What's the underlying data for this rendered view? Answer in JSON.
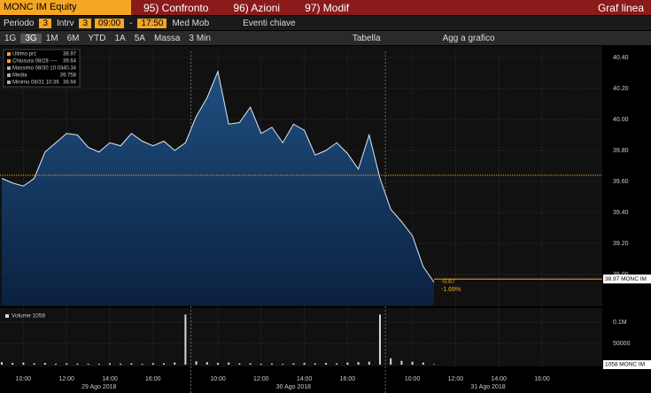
{
  "toolbar": {
    "ticker": "MONC IM Equity",
    "menu": [
      "95) Confronto",
      "96) Azioni",
      "97) Modif"
    ],
    "view": "Graf linea",
    "period_label": "Periodo",
    "period": "3",
    "interval_label": "Intrv",
    "interval": "3",
    "start": "09:00",
    "dash": "-",
    "end": "17:50",
    "moving_avg": "Med Mob",
    "events": "Eventi chiave",
    "ranges": [
      "1G",
      "3G",
      "1M",
      "6M",
      "YTD",
      "1A",
      "5A"
    ],
    "mass": "Massa",
    "step": "3 Min",
    "table": "Tabella",
    "add": "Agg a grafico"
  },
  "chart_data": [
    {
      "type": "area",
      "color": "#dfe8f2",
      "legend": [
        {
          "label": "Ultimo prz",
          "value": 38.97
        },
        {
          "label": "Chiusura 08/28 ----",
          "value": 39.64
        },
        {
          "label": "Massimo 08/30 10:03",
          "value": 40.34
        },
        {
          "label": "Media",
          "value": 39.758
        },
        {
          "label": "Minimo 08/31 10:36",
          "value": 38.94
        }
      ],
      "categories": [
        null,
        null,
        "10:00",
        null,
        null,
        null,
        "12:00",
        null,
        null,
        null,
        "14:00",
        null,
        null,
        null,
        "16:00",
        null,
        null,
        null,
        null,
        null,
        "10:00",
        null,
        null,
        null,
        "12:00",
        null,
        null,
        null,
        "14:00",
        null,
        null,
        null,
        "16:00",
        null,
        null,
        null,
        null,
        null,
        "10:00",
        null,
        null,
        null,
        "12:00",
        null,
        null,
        null,
        "14:00",
        null,
        null,
        null,
        "16:00",
        null,
        null,
        null
      ],
      "dates": [
        "29 Ago 2018",
        "30 Ago 2018",
        "31 Ago 2018"
      ],
      "values": [
        39.62,
        39.59,
        39.57,
        39.62,
        39.79,
        39.85,
        39.91,
        39.9,
        39.82,
        39.79,
        39.85,
        39.83,
        39.91,
        39.86,
        39.83,
        39.86,
        39.8,
        39.85,
        40.02,
        40.14,
        40.31,
        39.97,
        39.98,
        40.08,
        39.91,
        39.95,
        39.85,
        39.97,
        39.93,
        39.77,
        39.8,
        39.85,
        39.78,
        39.68,
        39.9,
        39.62,
        39.42,
        39.34,
        39.25,
        39.05,
        38.95,
        null,
        null,
        null,
        null,
        null,
        null,
        null,
        null,
        null,
        null,
        null,
        null,
        null
      ],
      "ylim": [
        38.8,
        40.44
      ],
      "yticks": [
        {
          "value": 39,
          "label": "39.00"
        },
        {
          "value": 39.2,
          "label": "39.20"
        },
        {
          "value": 39.4,
          "label": "39.40"
        },
        {
          "value": 39.6,
          "label": "39.60"
        },
        {
          "value": 39.8,
          "label": "39.80"
        },
        {
          "value": 40,
          "label": "40.00"
        },
        {
          "value": 40.2,
          "label": "40.20"
        },
        {
          "value": 40.4,
          "label": "40.40"
        }
      ],
      "last_label": "38.97 MONC IM",
      "annotations": [
        "-0.67",
        "-1.69%"
      ]
    },
    {
      "type": "bar",
      "color": "#d8d8d8",
      "legend": "Volume 1058",
      "values": [
        6000,
        4000,
        5000,
        3000,
        4000,
        2000,
        3000,
        2500,
        2000,
        2000,
        3000,
        2500,
        3000,
        2000,
        3500,
        3000,
        5000,
        118000,
        8000,
        6000,
        4000,
        5000,
        3000,
        3000,
        2000,
        2500,
        2000,
        3000,
        4000,
        3000,
        4000,
        3000,
        5000,
        6000,
        7000,
        118000,
        15000,
        9000,
        7000,
        5000,
        1058,
        null,
        null,
        null,
        null,
        null,
        null,
        null,
        null,
        null,
        null,
        null,
        null,
        null
      ],
      "ylim": [
        0,
        125000
      ],
      "yticks": [
        50000,
        {
          "value": 100000,
          "label": "0.1M"
        }
      ],
      "last_label": "1058 MONC IM"
    }
  ]
}
